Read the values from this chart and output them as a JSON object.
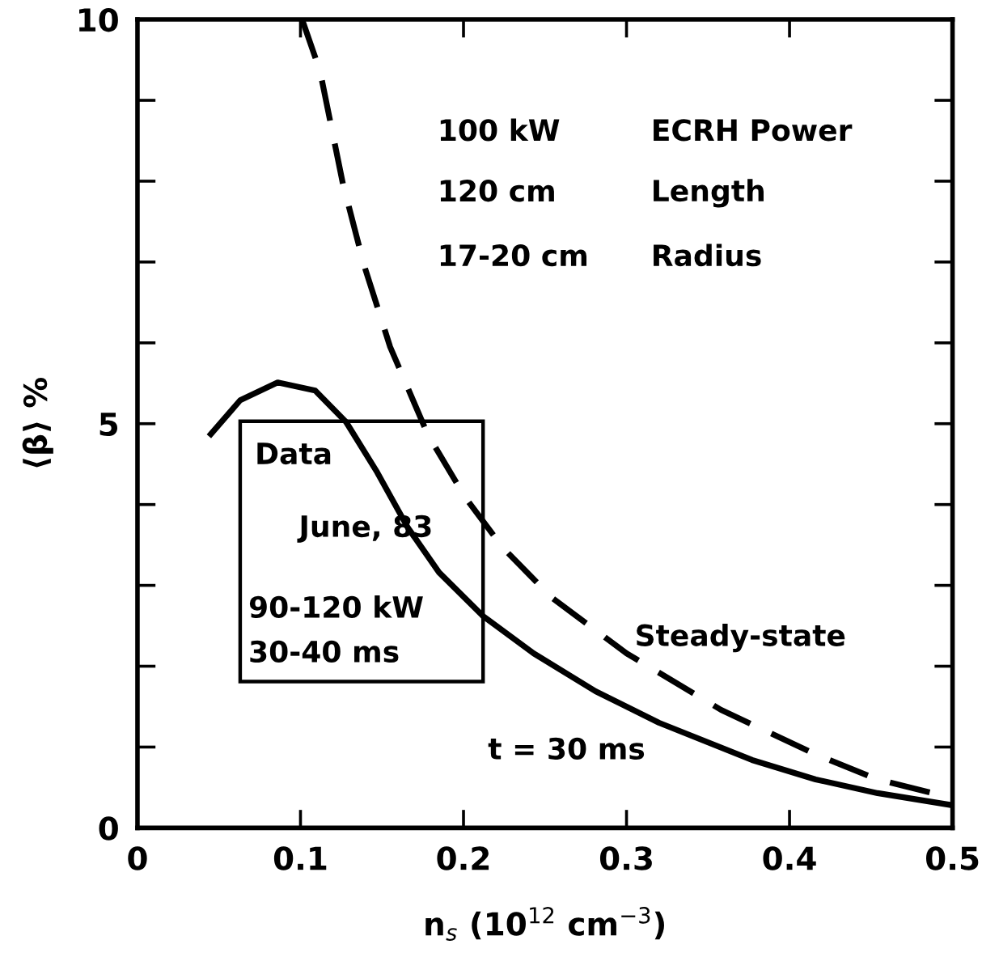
{
  "chart_data": {
    "type": "line",
    "xlabel": "n$_{s}$ (10$^{12}$ cm$^{−3}$)",
    "ylabel": "⟨β⟩ %",
    "xlim": [
      0,
      0.5
    ],
    "ylim": [
      0,
      10
    ],
    "xticks": [
      0,
      0.1,
      0.2,
      0.3,
      0.4,
      0.5
    ],
    "yticks": [
      0,
      {
        "value": 1,
        "label": null
      },
      {
        "value": 2,
        "label": null
      },
      {
        "value": 3,
        "label": null
      },
      {
        "value": 4,
        "label": null
      },
      5,
      {
        "value": 6,
        "label": null
      },
      {
        "value": 7,
        "label": null
      },
      {
        "value": 8,
        "label": null
      },
      {
        "value": 9,
        "label": null
      },
      10
    ],
    "grid": false,
    "legend": false,
    "marker": "none",
    "series": [
      {
        "color": "#000000",
        "line_style": "solid",
        "x": [
          0.045,
          0.063,
          0.086,
          0.109,
          0.128,
          0.147,
          0.166,
          0.185,
          0.212,
          0.243,
          0.281,
          0.32,
          0.377,
          0.416,
          0.454,
          0.5
        ],
        "values": [
          4.87,
          5.29,
          5.51,
          5.41,
          5.02,
          4.4,
          3.71,
          3.16,
          2.62,
          2.16,
          1.69,
          1.3,
          0.84,
          0.6,
          0.43,
          0.28
        ]
      },
      {
        "color": "#000000",
        "line_style": "dashed",
        "x": [
          0.101,
          0.112,
          0.126,
          0.139,
          0.155,
          0.178,
          0.201,
          0.224,
          0.254,
          0.3,
          0.358,
          0.416,
          0.454,
          0.5
        ],
        "values": [
          10,
          9.36,
          7.97,
          6.96,
          5.95,
          4.87,
          4.09,
          3.47,
          2.85,
          2.16,
          1.46,
          0.91,
          0.6,
          0.37
        ]
      }
    ],
    "annotations": [
      "100 kW",
      "ECRH Power",
      "120 cm",
      "Length",
      "17-20 cm",
      "Radius",
      "Data",
      "June, 83",
      "90-120 kW",
      "30-40 ms",
      "Steady-state",
      "t = 30 ms"
    ]
  }
}
